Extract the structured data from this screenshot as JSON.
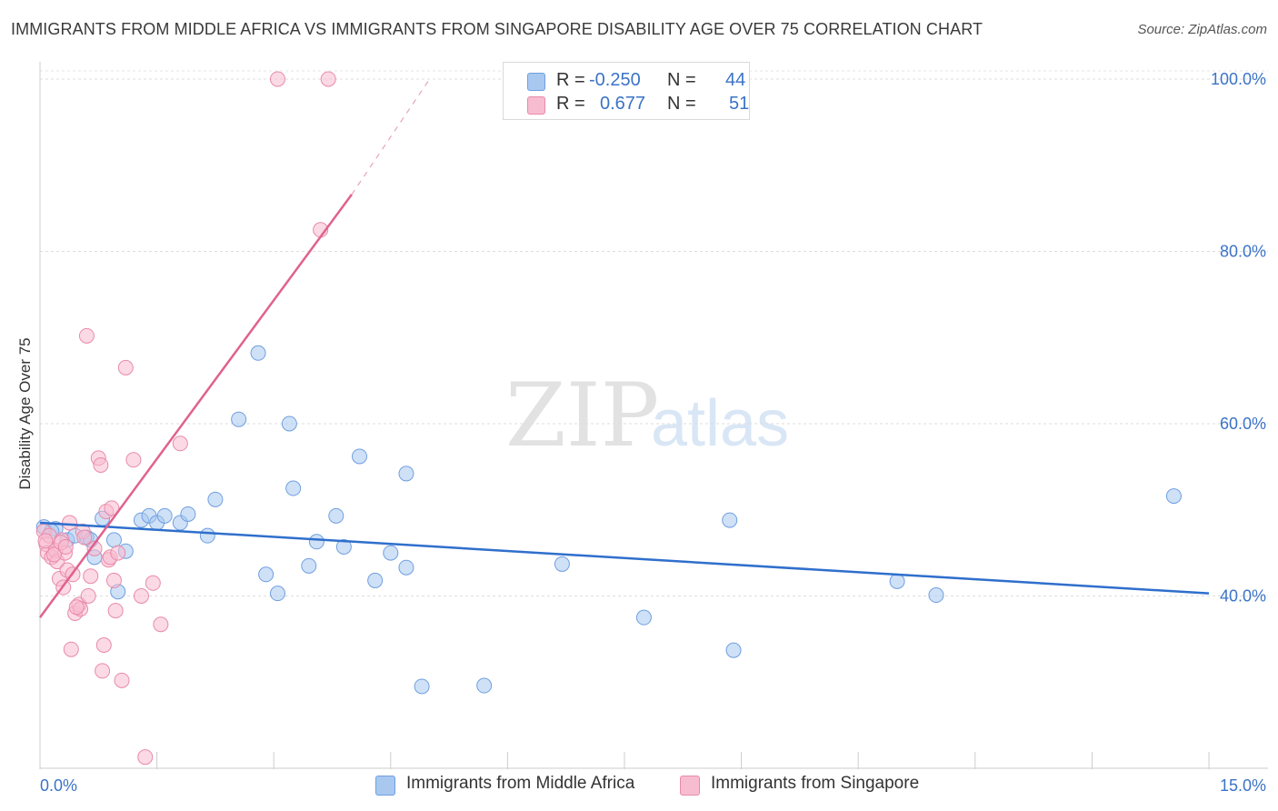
{
  "title": "IMMIGRANTS FROM MIDDLE AFRICA VS IMMIGRANTS FROM SINGAPORE DISABILITY AGE OVER 75 CORRELATION CHART",
  "source": "Source: ZipAtlas.com",
  "watermark": {
    "zip": "ZIP",
    "atlas": "atlas"
  },
  "legend_top": {
    "rows": [
      {
        "r_label": "R =",
        "r_value": "-0.250",
        "n_label": "N =",
        "n_value": "44",
        "color": "#a8c8f0",
        "border": "#6f9fe0"
      },
      {
        "r_label": "R =",
        "r_value": "0.677",
        "n_label": "N =",
        "n_value": "51",
        "color": "#f7bcd0",
        "border": "#e98aaa"
      }
    ]
  },
  "legend_bottom": [
    {
      "label": "Immigrants from Middle Africa",
      "color": "#a8c8f0",
      "border": "#6f9fe0"
    },
    {
      "label": "Immigrants from Singapore",
      "color": "#f7bcd0",
      "border": "#e98aaa"
    }
  ],
  "chart_data": {
    "type": "scatter",
    "title": "IMMIGRANTS FROM MIDDLE AFRICA VS IMMIGRANTS FROM SINGAPORE DISABILITY AGE OVER 75 CORRELATION CHART",
    "xlabel": "",
    "ylabel": "Disability Age Over 75",
    "xlim": [
      0,
      15
    ],
    "ylim": [
      20,
      102
    ],
    "x_tick_labels": [
      "0.0%",
      "15.0%"
    ],
    "y_ticks": [
      40,
      60,
      80,
      100
    ],
    "y_tick_labels": [
      "40.0%",
      "60.0%",
      "80.0%",
      "100.0%"
    ],
    "grid": true,
    "legend_position": "top-center",
    "series": [
      {
        "name": "Immigrants from Middle Africa",
        "color": "#6f9fe0",
        "fill": "#a8c8f0",
        "points": [
          [
            0.05,
            48.0
          ],
          [
            0.2,
            47.8
          ],
          [
            0.35,
            46.5
          ],
          [
            0.45,
            47.0
          ],
          [
            0.6,
            46.8
          ],
          [
            0.65,
            46.5
          ],
          [
            0.7,
            44.5
          ],
          [
            0.8,
            49.0
          ],
          [
            0.95,
            46.5
          ],
          [
            1.0,
            40.5
          ],
          [
            1.1,
            45.2
          ],
          [
            1.3,
            48.8
          ],
          [
            1.4,
            49.3
          ],
          [
            1.5,
            48.5
          ],
          [
            1.6,
            49.3
          ],
          [
            1.8,
            48.5
          ],
          [
            1.9,
            49.5
          ],
          [
            2.15,
            47.0
          ],
          [
            2.25,
            51.2
          ],
          [
            2.55,
            60.5
          ],
          [
            2.8,
            68.2
          ],
          [
            2.9,
            42.5
          ],
          [
            3.05,
            40.3
          ],
          [
            3.2,
            60.0
          ],
          [
            3.25,
            52.5
          ],
          [
            3.45,
            43.5
          ],
          [
            3.55,
            46.3
          ],
          [
            3.8,
            49.3
          ],
          [
            3.9,
            45.7
          ],
          [
            4.1,
            56.2
          ],
          [
            4.3,
            41.8
          ],
          [
            4.5,
            45.0
          ],
          [
            4.7,
            54.2
          ],
          [
            4.7,
            43.3
          ],
          [
            4.9,
            29.5
          ],
          [
            5.7,
            29.6
          ],
          [
            6.7,
            43.7
          ],
          [
            7.75,
            37.5
          ],
          [
            8.85,
            48.8
          ],
          [
            8.9,
            33.7
          ],
          [
            11.0,
            41.7
          ],
          [
            11.5,
            40.1
          ],
          [
            14.55,
            51.6
          ],
          [
            0.15,
            47.5
          ]
        ],
        "trend": {
          "x": [
            0.0,
            15.0
          ],
          "y": [
            48.5,
            40.3
          ]
        }
      },
      {
        "name": "Immigrants from Singapore",
        "color": "#e98aaa",
        "fill": "#f7bcd0",
        "points": [
          [
            0.05,
            47.5
          ],
          [
            0.08,
            46.0
          ],
          [
            0.1,
            45.0
          ],
          [
            0.12,
            47.0
          ],
          [
            0.15,
            44.5
          ],
          [
            0.2,
            45.3
          ],
          [
            0.22,
            44.0
          ],
          [
            0.25,
            42.0
          ],
          [
            0.28,
            46.5
          ],
          [
            0.3,
            41.0
          ],
          [
            0.32,
            45.0
          ],
          [
            0.35,
            43.0
          ],
          [
            0.38,
            48.5
          ],
          [
            0.4,
            33.8
          ],
          [
            0.42,
            42.5
          ],
          [
            0.45,
            38.0
          ],
          [
            0.5,
            39.0
          ],
          [
            0.52,
            38.5
          ],
          [
            0.55,
            47.5
          ],
          [
            0.6,
            70.2
          ],
          [
            0.62,
            40.0
          ],
          [
            0.65,
            42.3
          ],
          [
            0.7,
            45.5
          ],
          [
            0.75,
            56.0
          ],
          [
            0.78,
            55.2
          ],
          [
            0.8,
            31.3
          ],
          [
            0.82,
            34.3
          ],
          [
            0.85,
            49.8
          ],
          [
            0.88,
            44.2
          ],
          [
            0.9,
            44.5
          ],
          [
            0.92,
            50.2
          ],
          [
            0.95,
            41.8
          ],
          [
            0.97,
            38.3
          ],
          [
            1.0,
            45.0
          ],
          [
            1.05,
            30.2
          ],
          [
            1.1,
            66.5
          ],
          [
            1.2,
            55.8
          ],
          [
            1.3,
            40.0
          ],
          [
            1.35,
            21.3
          ],
          [
            1.45,
            41.5
          ],
          [
            1.55,
            36.7
          ],
          [
            1.8,
            57.7
          ],
          [
            3.05,
            100.0
          ],
          [
            3.7,
            100.0
          ],
          [
            3.6,
            82.5
          ],
          [
            0.18,
            44.8
          ],
          [
            0.27,
            46.2
          ],
          [
            0.33,
            45.7
          ],
          [
            0.47,
            38.7
          ],
          [
            0.57,
            46.8
          ],
          [
            0.07,
            46.4
          ]
        ],
        "trend": {
          "x": [
            0.0,
            4.0
          ],
          "y": [
            37.5,
            86.6
          ]
        },
        "trend_dashed": {
          "x": [
            4.0,
            5.0
          ],
          "y": [
            86.6,
            100.0
          ]
        }
      }
    ]
  }
}
